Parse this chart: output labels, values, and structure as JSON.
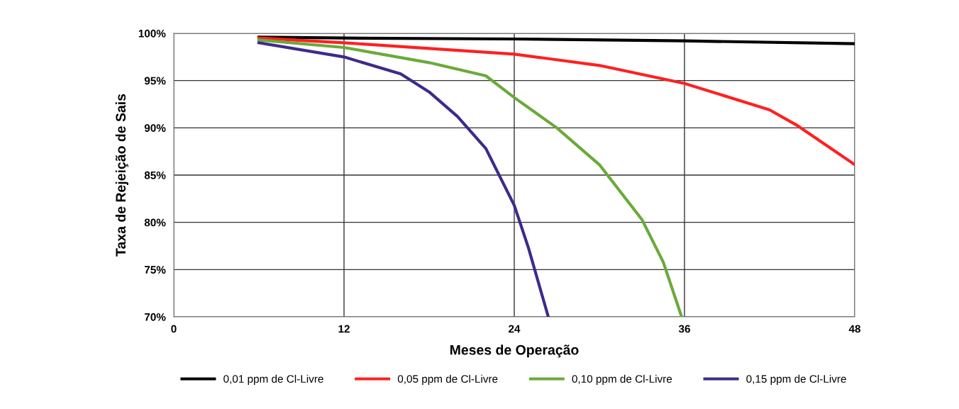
{
  "chart_data": {
    "type": "line",
    "xlabel": "Meses de Operação",
    "ylabel": "Taxa de Rejeição de Sais",
    "xlim": [
      0,
      48
    ],
    "xticks": [
      0,
      12,
      24,
      36,
      48
    ],
    "ylim": [
      70,
      100
    ],
    "yticks": [
      {
        "value": 70,
        "label": "70%"
      },
      {
        "value": 75,
        "label": "75%"
      },
      {
        "value": 80,
        "label": "80%"
      },
      {
        "value": 85,
        "label": "85%"
      },
      {
        "value": 90,
        "label": "90%"
      },
      {
        "value": 95,
        "label": "95%"
      },
      {
        "value": 100,
        "label": "100%"
      }
    ],
    "grid": true,
    "legend": "bottom",
    "marker": "none",
    "line_style": "solid",
    "series": [
      {
        "name": "0,01 ppm de Cl-Livre",
        "color": "#000000",
        "x": [
          6,
          12,
          24,
          36,
          48
        ],
        "values": [
          99.6,
          99.5,
          99.4,
          99.2,
          98.9
        ]
      },
      {
        "name": "0,05 ppm de Cl-Livre",
        "color": "#ff2020",
        "x": [
          6,
          12,
          24,
          30,
          36,
          42,
          44,
          48
        ],
        "values": [
          99.5,
          99.0,
          97.8,
          96.6,
          94.7,
          91.9,
          90.2,
          86.1
        ]
      },
      {
        "name": "0,10 ppm de Cl-Livre",
        "color": "#6aaa3a",
        "x": [
          6,
          12,
          18,
          22,
          24,
          27,
          30,
          33,
          34.5,
          35.8
        ],
        "values": [
          99.3,
          98.5,
          96.9,
          95.5,
          93.2,
          90.0,
          86.1,
          80.3,
          75.8,
          70.0
        ]
      },
      {
        "name": "0,15 ppm de Cl-Livre",
        "color": "#3f2a8a",
        "x": [
          6,
          12,
          16,
          18,
          20,
          22,
          24,
          25,
          26.4
        ],
        "values": [
          99.0,
          97.5,
          95.7,
          93.8,
          91.2,
          87.8,
          81.8,
          77.3,
          70.0
        ]
      }
    ]
  }
}
